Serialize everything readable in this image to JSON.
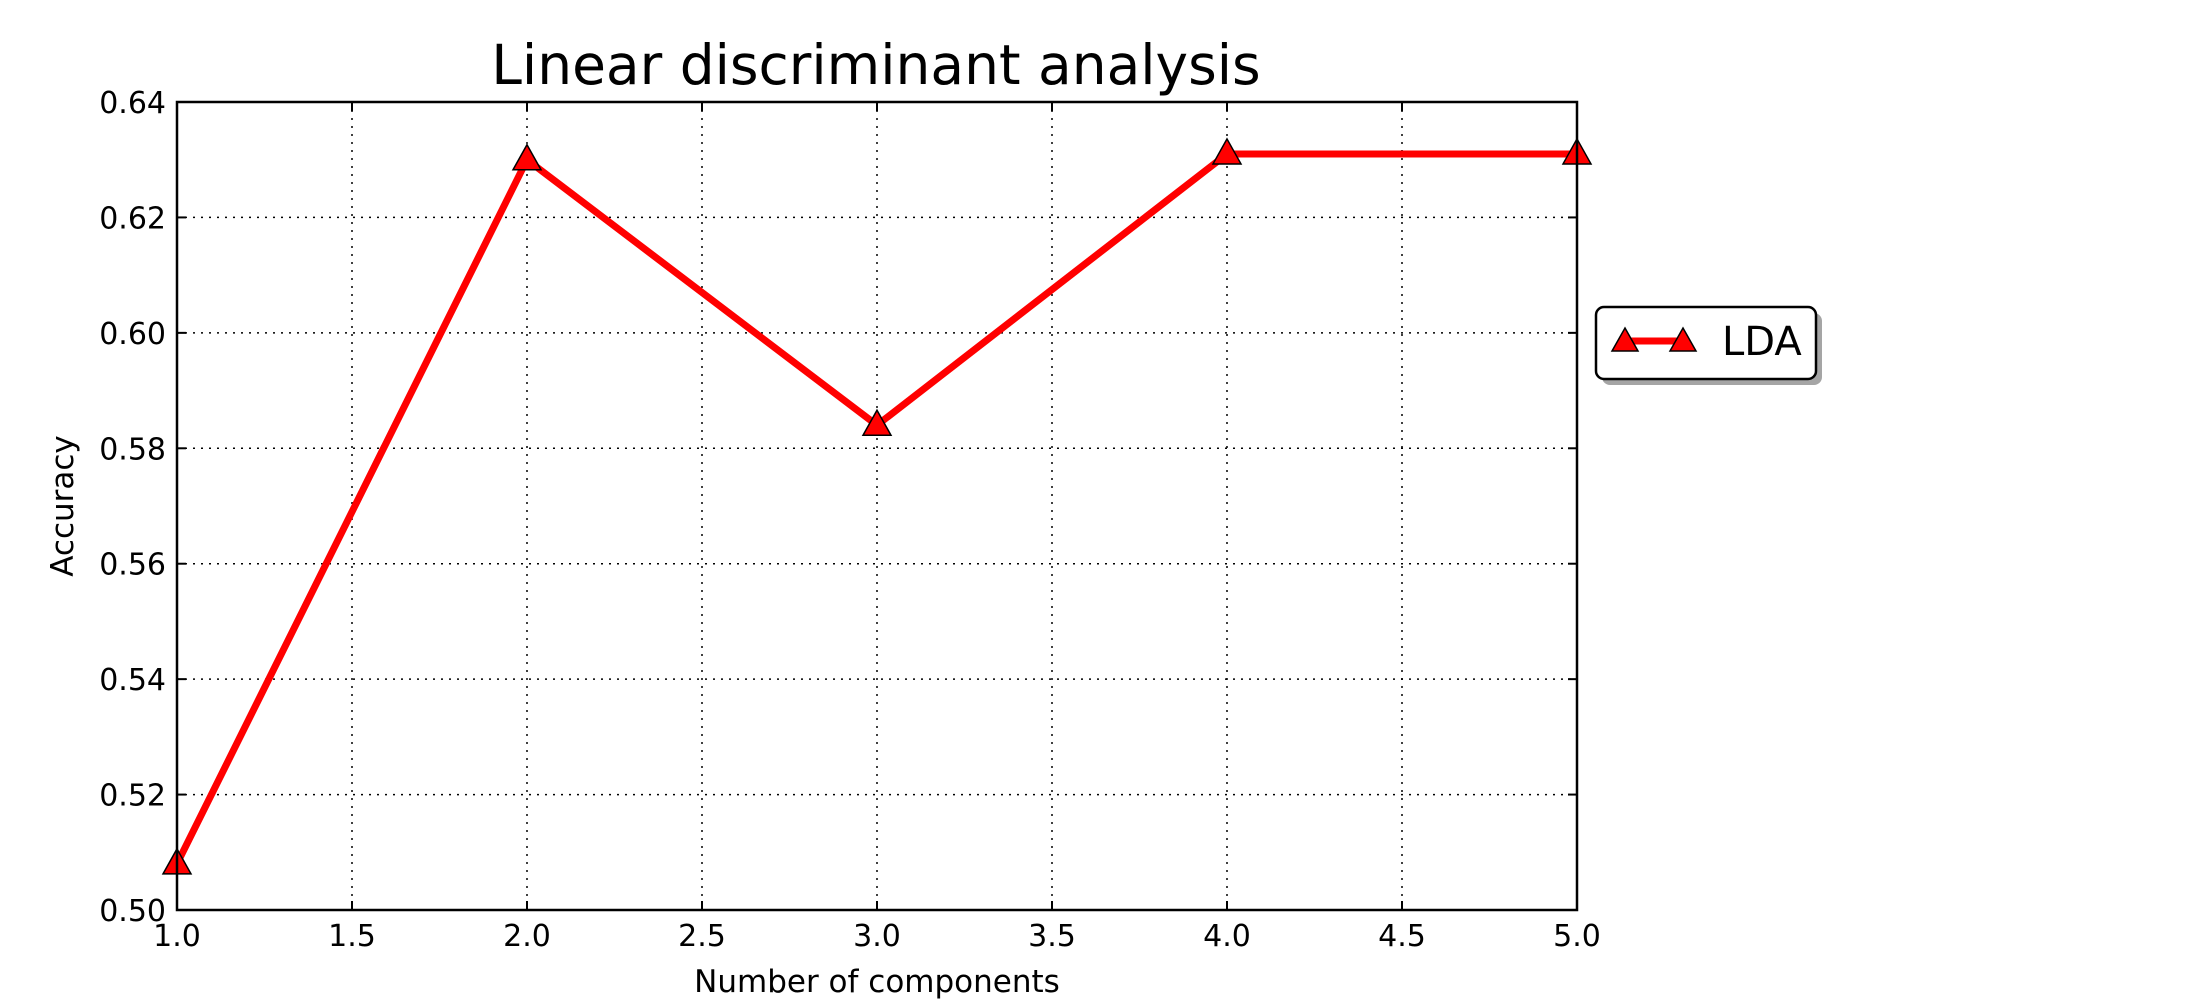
{
  "chart_data": {
    "type": "line",
    "title": "Linear discriminant analysis",
    "xlabel": "Number of components",
    "ylabel": "Accuracy",
    "xlim": [
      1.0,
      5.0
    ],
    "ylim": [
      0.5,
      0.64
    ],
    "xticks": [
      "1.0",
      "1.5",
      "2.0",
      "2.5",
      "3.0",
      "3.5",
      "4.0",
      "4.5",
      "5.0"
    ],
    "yticks": [
      "0.50",
      "0.52",
      "0.54",
      "0.56",
      "0.58",
      "0.60",
      "0.62",
      "0.64"
    ],
    "grid": true,
    "legend_position": "outside-right",
    "series": [
      {
        "name": "LDA",
        "color": "#ff0000",
        "marker": "triangle",
        "x": [
          1,
          2,
          3,
          4,
          5
        ],
        "y": [
          0.508,
          0.63,
          0.584,
          0.631,
          0.631
        ]
      }
    ]
  }
}
